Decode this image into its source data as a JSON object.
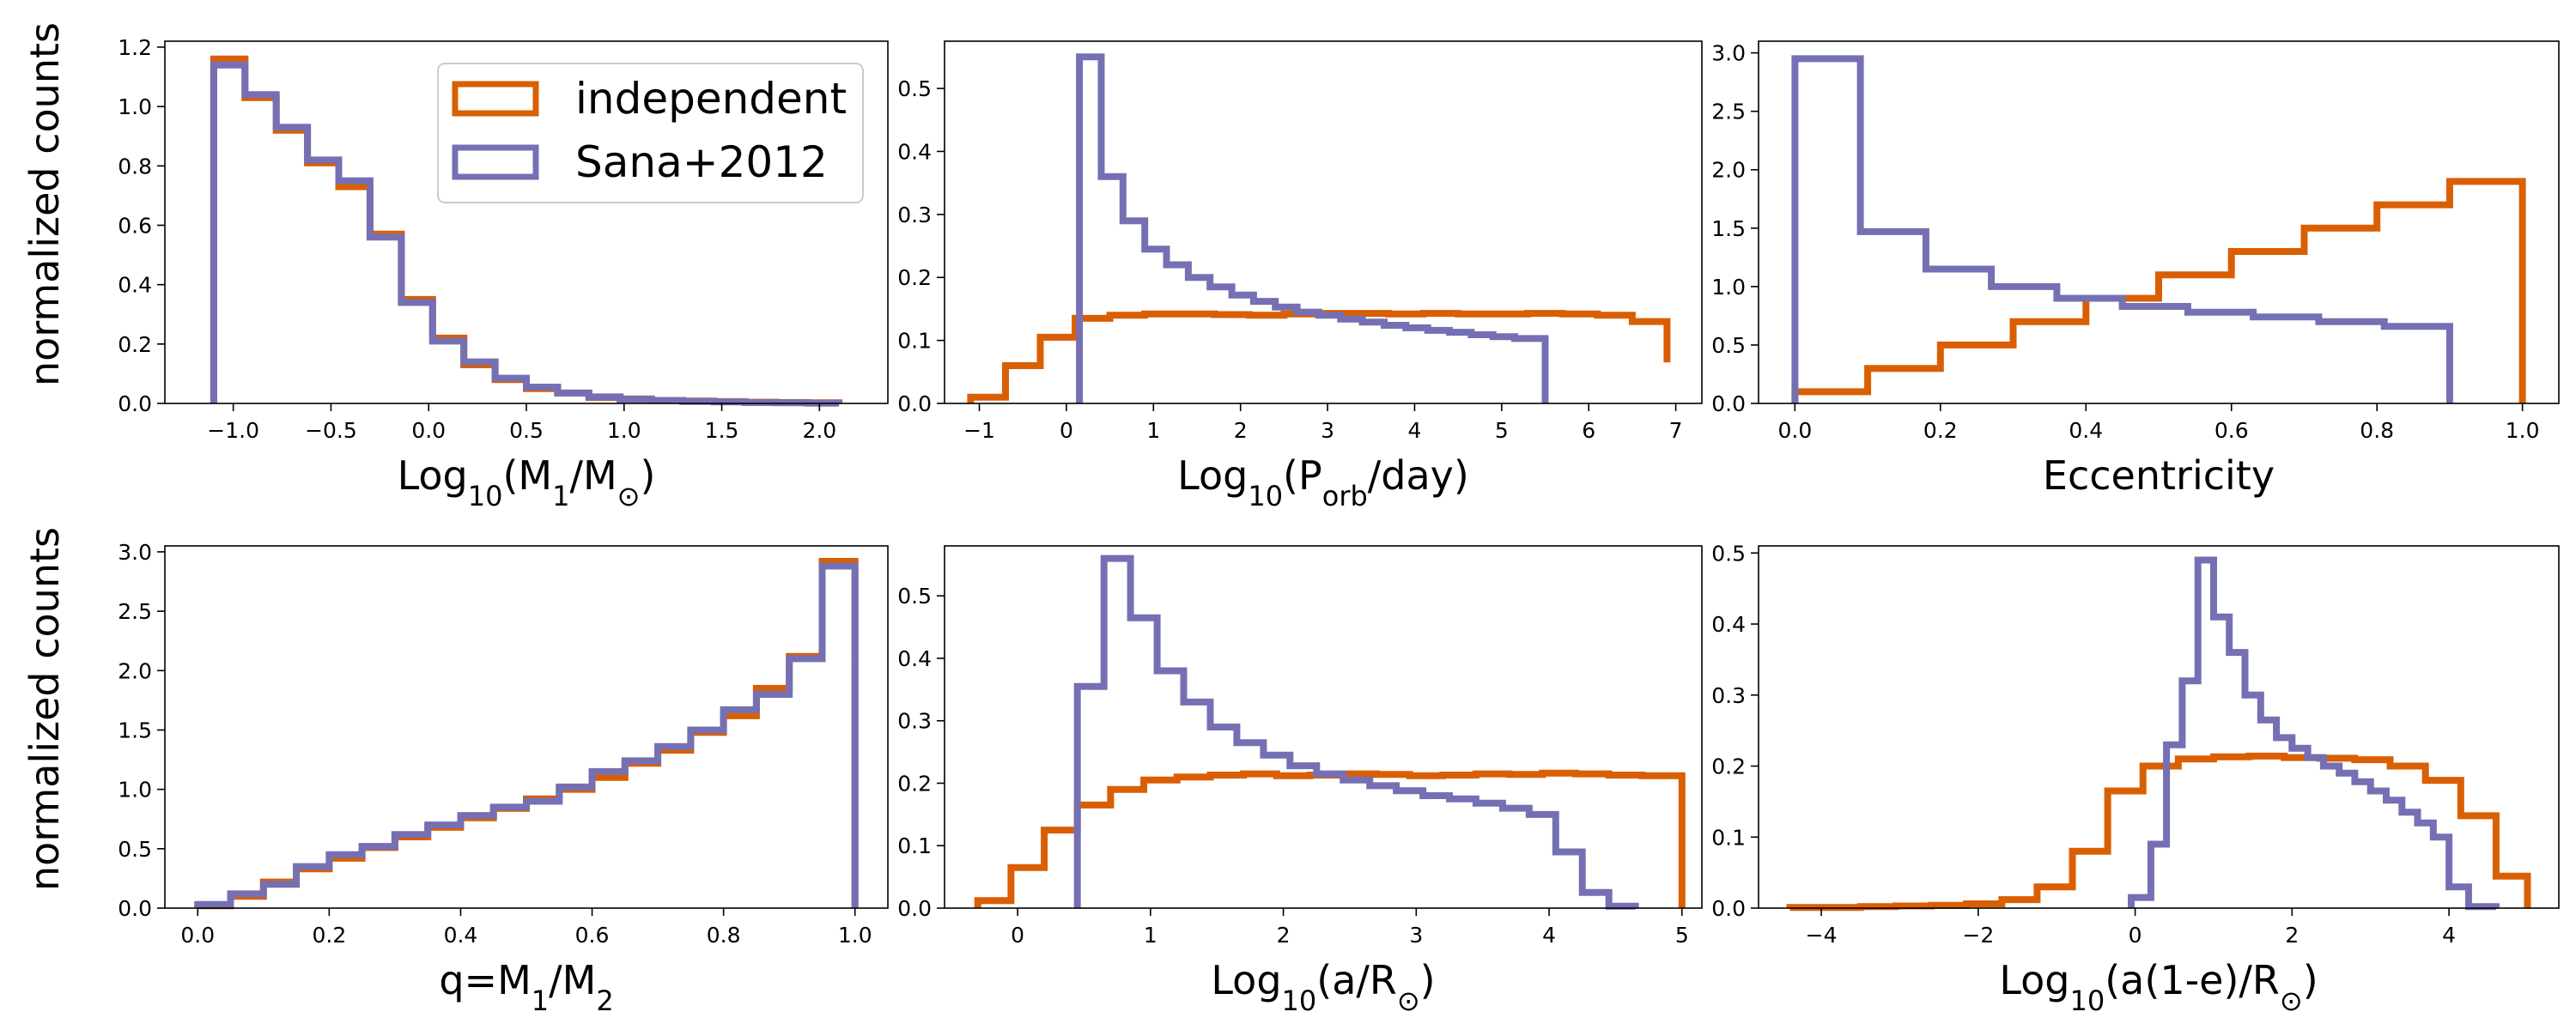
{
  "colors": {
    "independent": "#d95f02",
    "sana": "#7570b3"
  },
  "legend": {
    "entries": [
      "independent",
      "Sana+2012"
    ]
  },
  "ylabel": "normalized counts",
  "chart_data": [
    {
      "type": "step-histogram",
      "xlabel": "Log10(M1/M⊙)",
      "xlim": [
        -1.35,
        2.35
      ],
      "ylim": [
        0,
        1.22
      ],
      "xticks": [
        -1.0,
        -0.5,
        0.0,
        0.5,
        1.0,
        1.5,
        2.0
      ],
      "xtick_labels": [
        "−1.0",
        "−0.5",
        "0.0",
        "0.5",
        "1.0",
        "1.5",
        "2.0"
      ],
      "yticks": [
        0.0,
        0.2,
        0.4,
        0.6,
        0.8,
        1.0,
        1.2
      ],
      "ytick_labels": [
        "0.0",
        "0.2",
        "0.4",
        "0.6",
        "0.8",
        "1.0",
        "1.2"
      ],
      "series": [
        {
          "name": "independent",
          "color_key": "independent",
          "edges": [
            -1.1,
            -0.94,
            -0.78,
            -0.62,
            -0.46,
            -0.3,
            -0.14,
            0.02,
            0.18,
            0.34,
            0.5,
            0.66,
            0.82,
            0.98,
            1.14,
            1.3,
            1.46,
            1.62,
            1.78,
            1.94,
            2.1
          ],
          "values": [
            1.16,
            1.03,
            0.92,
            0.81,
            0.73,
            0.57,
            0.35,
            0.22,
            0.13,
            0.08,
            0.05,
            0.035,
            0.02,
            0.015,
            0.01,
            0.008,
            0.006,
            0.004,
            0.003,
            0.002
          ]
        },
        {
          "name": "Sana+2012",
          "color_key": "sana",
          "edges": [
            -1.1,
            -0.94,
            -0.78,
            -0.62,
            -0.46,
            -0.3,
            -0.14,
            0.02,
            0.18,
            0.34,
            0.5,
            0.66,
            0.82,
            0.98,
            1.14,
            1.3,
            1.46,
            1.62,
            1.78,
            1.94,
            2.1
          ],
          "values": [
            1.14,
            1.04,
            0.93,
            0.82,
            0.75,
            0.56,
            0.34,
            0.21,
            0.14,
            0.085,
            0.055,
            0.035,
            0.022,
            0.014,
            0.01,
            0.007,
            0.005,
            0.003,
            0.002,
            0.001
          ]
        }
      ]
    },
    {
      "type": "step-histogram",
      "xlabel": "Log10(Porb/day)",
      "xlim": [
        -1.4,
        7.3
      ],
      "ylim": [
        0,
        0.575
      ],
      "xticks": [
        -1,
        0,
        1,
        2,
        3,
        4,
        5,
        6,
        7
      ],
      "xtick_labels": [
        "−1",
        "0",
        "1",
        "2",
        "3",
        "4",
        "5",
        "6",
        "7"
      ],
      "yticks": [
        0.0,
        0.1,
        0.2,
        0.3,
        0.4,
        0.5
      ],
      "ytick_labels": [
        "0.0",
        "0.1",
        "0.2",
        "0.3",
        "0.4",
        "0.5"
      ],
      "series": [
        {
          "name": "independent",
          "color_key": "independent",
          "edges": [
            -1.1,
            -0.7,
            -0.3,
            0.1,
            0.5,
            0.9,
            1.3,
            1.7,
            2.1,
            2.5,
            2.9,
            3.3,
            3.7,
            4.1,
            4.5,
            4.9,
            5.3,
            5.7,
            6.1,
            6.5,
            6.9
          ],
          "values": [
            0.01,
            0.06,
            0.105,
            0.135,
            0.14,
            0.142,
            0.142,
            0.141,
            0.14,
            0.142,
            0.143,
            0.143,
            0.142,
            0.143,
            0.142,
            0.142,
            0.143,
            0.142,
            0.14,
            0.13,
            0.065
          ]
        },
        {
          "name": "Sana+2012",
          "color_key": "sana",
          "edges": [
            0.15,
            0.4,
            0.65,
            0.9,
            1.15,
            1.4,
            1.65,
            1.9,
            2.15,
            2.4,
            2.65,
            2.9,
            3.15,
            3.4,
            3.65,
            3.9,
            4.15,
            4.4,
            4.65,
            4.9,
            5.15,
            5.5
          ],
          "values": [
            0.55,
            0.36,
            0.29,
            0.245,
            0.22,
            0.2,
            0.185,
            0.172,
            0.162,
            0.153,
            0.145,
            0.14,
            0.134,
            0.129,
            0.124,
            0.12,
            0.116,
            0.113,
            0.109,
            0.106,
            0.103
          ]
        }
      ]
    },
    {
      "type": "step-histogram",
      "xlabel": "Eccentricity",
      "xlim": [
        -0.05,
        1.05
      ],
      "ylim": [
        0,
        3.1
      ],
      "xticks": [
        0.0,
        0.2,
        0.4,
        0.6,
        0.8,
        1.0
      ],
      "xtick_labels": [
        "0.0",
        "0.2",
        "0.4",
        "0.6",
        "0.8",
        "1.0"
      ],
      "yticks": [
        0.0,
        0.5,
        1.0,
        1.5,
        2.0,
        2.5,
        3.0
      ],
      "ytick_labels": [
        "0.0",
        "0.5",
        "1.0",
        "1.5",
        "2.0",
        "2.5",
        "3.0"
      ],
      "series": [
        {
          "name": "independent",
          "color_key": "independent",
          "edges": [
            0.0,
            0.1,
            0.2,
            0.3,
            0.4,
            0.5,
            0.6,
            0.7,
            0.8,
            0.9,
            1.0
          ],
          "values": [
            0.1,
            0.3,
            0.5,
            0.7,
            0.9,
            1.1,
            1.3,
            1.5,
            1.7,
            1.9
          ]
        },
        {
          "name": "Sana+2012",
          "color_key": "sana",
          "edges": [
            0.0,
            0.09,
            0.18,
            0.27,
            0.36,
            0.45,
            0.54,
            0.63,
            0.72,
            0.81,
            0.9
          ],
          "values": [
            2.95,
            1.47,
            1.15,
            1.0,
            0.9,
            0.83,
            0.78,
            0.74,
            0.7,
            0.66
          ]
        }
      ]
    },
    {
      "type": "step-histogram",
      "xlabel": "q=M1/M2",
      "xlim": [
        -0.05,
        1.05
      ],
      "ylim": [
        0,
        3.05
      ],
      "xticks": [
        0.0,
        0.2,
        0.4,
        0.6,
        0.8,
        1.0
      ],
      "xtick_labels": [
        "0.0",
        "0.2",
        "0.4",
        "0.6",
        "0.8",
        "1.0"
      ],
      "yticks": [
        0.0,
        0.5,
        1.0,
        1.5,
        2.0,
        2.5,
        3.0
      ],
      "ytick_labels": [
        "0.0",
        "0.5",
        "1.0",
        "1.5",
        "2.0",
        "2.5",
        "3.0"
      ],
      "series": [
        {
          "name": "independent",
          "color_key": "independent",
          "edges": [
            0.0,
            0.05,
            0.1,
            0.15,
            0.2,
            0.25,
            0.3,
            0.35,
            0.4,
            0.45,
            0.5,
            0.55,
            0.6,
            0.65,
            0.7,
            0.75,
            0.8,
            0.85,
            0.9,
            0.95,
            1.0
          ],
          "values": [
            0.02,
            0.1,
            0.22,
            0.33,
            0.42,
            0.51,
            0.6,
            0.68,
            0.76,
            0.84,
            0.92,
            1.0,
            1.1,
            1.22,
            1.33,
            1.48,
            1.62,
            1.85,
            2.12,
            2.92
          ]
        },
        {
          "name": "Sana+2012",
          "color_key": "sana",
          "edges": [
            0.0,
            0.05,
            0.1,
            0.15,
            0.2,
            0.25,
            0.3,
            0.35,
            0.4,
            0.45,
            0.5,
            0.55,
            0.6,
            0.65,
            0.7,
            0.75,
            0.8,
            0.85,
            0.9,
            0.95,
            1.0
          ],
          "values": [
            0.03,
            0.12,
            0.2,
            0.35,
            0.45,
            0.52,
            0.62,
            0.7,
            0.78,
            0.85,
            0.9,
            1.02,
            1.15,
            1.24,
            1.36,
            1.5,
            1.67,
            1.8,
            2.1,
            2.88
          ]
        }
      ]
    },
    {
      "type": "step-histogram",
      "xlabel": "Log10(a/R⊙)",
      "xlim": [
        -0.55,
        5.15
      ],
      "ylim": [
        0,
        0.58
      ],
      "xticks": [
        0,
        1,
        2,
        3,
        4,
        5
      ],
      "xtick_labels": [
        "0",
        "1",
        "2",
        "3",
        "4",
        "5"
      ],
      "yticks": [
        0.0,
        0.1,
        0.2,
        0.3,
        0.4,
        0.5
      ],
      "ytick_labels": [
        "0.0",
        "0.1",
        "0.2",
        "0.3",
        "0.4",
        "0.5"
      ],
      "series": [
        {
          "name": "independent",
          "color_key": "independent",
          "edges": [
            -0.3,
            -0.05,
            0.2,
            0.45,
            0.7,
            0.95,
            1.2,
            1.45,
            1.7,
            1.95,
            2.2,
            2.45,
            2.7,
            2.95,
            3.2,
            3.45,
            3.7,
            3.95,
            4.2,
            4.45,
            4.7,
            5.0
          ],
          "values": [
            0.012,
            0.065,
            0.125,
            0.165,
            0.19,
            0.205,
            0.21,
            0.213,
            0.215,
            0.212,
            0.213,
            0.215,
            0.214,
            0.212,
            0.213,
            0.215,
            0.214,
            0.216,
            0.215,
            0.213,
            0.212
          ]
        },
        {
          "name": "Sana+2012",
          "color_key": "sana",
          "edges": [
            0.45,
            0.65,
            0.85,
            1.05,
            1.25,
            1.45,
            1.65,
            1.85,
            2.05,
            2.25,
            2.45,
            2.65,
            2.85,
            3.05,
            3.25,
            3.45,
            3.65,
            3.85,
            4.05,
            4.25,
            4.45,
            4.65
          ],
          "values": [
            0.355,
            0.56,
            0.465,
            0.38,
            0.33,
            0.29,
            0.265,
            0.245,
            0.228,
            0.215,
            0.205,
            0.196,
            0.188,
            0.18,
            0.175,
            0.168,
            0.16,
            0.15,
            0.09,
            0.025,
            0.003
          ]
        }
      ]
    },
    {
      "type": "step-histogram",
      "xlabel": "Log10(a(1-e)/R⊙)",
      "xlim": [
        -4.8,
        5.4
      ],
      "ylim": [
        0,
        0.51
      ],
      "xticks": [
        -4,
        -2,
        0,
        2,
        4
      ],
      "xtick_labels": [
        "−4",
        "−2",
        "0",
        "2",
        "4"
      ],
      "yticks": [
        0.0,
        0.1,
        0.2,
        0.3,
        0.4,
        0.5
      ],
      "ytick_labels": [
        "0.0",
        "0.1",
        "0.2",
        "0.3",
        "0.4",
        "0.5"
      ],
      "series": [
        {
          "name": "independent",
          "color_key": "independent",
          "edges": [
            -4.4,
            -3.95,
            -3.5,
            -3.05,
            -2.6,
            -2.15,
            -1.7,
            -1.25,
            -0.8,
            -0.35,
            0.1,
            0.55,
            1.0,
            1.45,
            1.9,
            2.35,
            2.8,
            3.25,
            3.7,
            4.15,
            4.6,
            5.0
          ],
          "values": [
            0.001,
            0.001,
            0.002,
            0.003,
            0.004,
            0.006,
            0.012,
            0.03,
            0.08,
            0.165,
            0.2,
            0.21,
            0.213,
            0.214,
            0.212,
            0.211,
            0.209,
            0.2,
            0.18,
            0.13,
            0.045
          ]
        },
        {
          "name": "Sana+2012",
          "color_key": "sana",
          "edges": [
            -0.05,
            0.2,
            0.4,
            0.6,
            0.8,
            1.0,
            1.2,
            1.4,
            1.6,
            1.8,
            2.0,
            2.2,
            2.4,
            2.6,
            2.8,
            3.0,
            3.2,
            3.4,
            3.6,
            3.8,
            4.0,
            4.25,
            4.6
          ],
          "values": [
            0.015,
            0.09,
            0.23,
            0.32,
            0.49,
            0.41,
            0.36,
            0.3,
            0.265,
            0.24,
            0.225,
            0.212,
            0.2,
            0.19,
            0.178,
            0.165,
            0.152,
            0.135,
            0.12,
            0.1,
            0.03,
            0.002
          ]
        }
      ]
    }
  ]
}
